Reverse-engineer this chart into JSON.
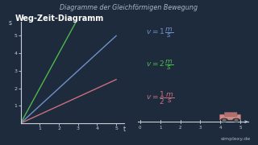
{
  "title": "Diagramme der Gleichförmigen Bewegung",
  "subtitle": "Weg-Zeit-Diagramm",
  "bg_color": "#1e2b3c",
  "text_color": "#c8d0d8",
  "title_color": "#a8b8c8",
  "axes_color": "#c8d0d8",
  "graph_xlim": [
    0,
    5.4
  ],
  "graph_ylim": [
    0,
    5.8
  ],
  "lines": [
    {
      "slope": 2,
      "color": "#4db84d"
    },
    {
      "slope": 1,
      "color": "#7090c8"
    },
    {
      "slope": 0.5,
      "color": "#c87080"
    }
  ],
  "eq1_color": "#7090c8",
  "eq2_color": "#4db84d",
  "eq3_color": "#c87080",
  "watermark": "simplexy.de"
}
